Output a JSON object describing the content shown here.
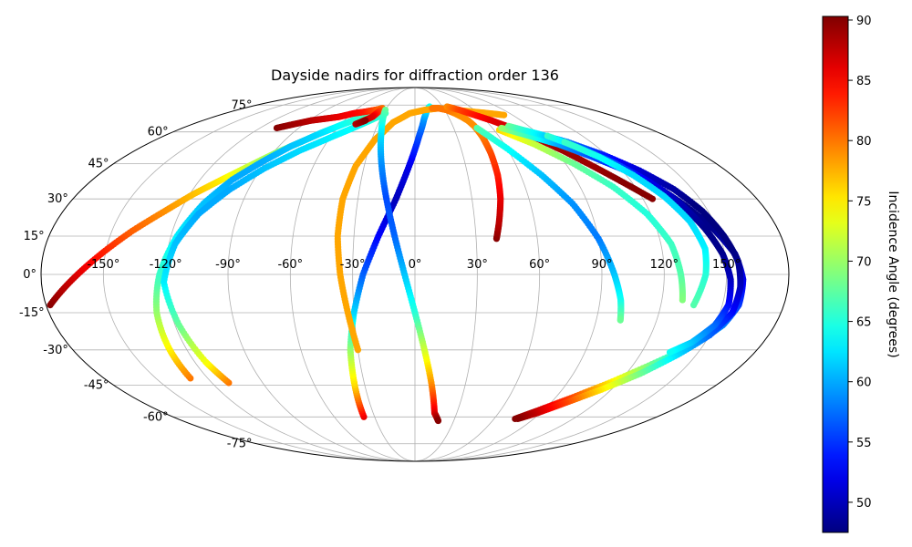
{
  "chart_data": {
    "type": "scatter",
    "projection": "mollweide",
    "title": "Dayside nadirs for diffraction order 136",
    "xlabel": "",
    "ylabel": "",
    "grid": true,
    "x_ticks": [
      "-150°",
      "-120°",
      "-90°",
      "-60°",
      "-30°",
      "0°",
      "30°",
      "60°",
      "90°",
      "120°",
      "150°"
    ],
    "x_tick_values": [
      -150,
      -120,
      -90,
      -60,
      -30,
      0,
      30,
      60,
      90,
      120,
      150
    ],
    "y_ticks": [
      "-75°",
      "-60°",
      "-45°",
      "-30°",
      "-15°",
      "0°",
      "15°",
      "30°",
      "45°",
      "60°",
      "75°"
    ],
    "y_tick_values": [
      -75,
      -60,
      -45,
      -30,
      -15,
      0,
      15,
      30,
      45,
      60,
      75
    ],
    "colorbar": {
      "label": "Incidence Angle (degrees)",
      "colormap": "jet",
      "range": [
        47.5,
        90.3
      ],
      "ticks": [
        50,
        55,
        60,
        65,
        70,
        75,
        80,
        85,
        90
      ],
      "tick_labels": [
        "50",
        "55",
        "60",
        "65",
        "70",
        "75",
        "80",
        "85",
        "90"
      ]
    },
    "series": [
      {
        "lon": [
          -178,
          -165,
          -152,
          -140,
          -128,
          -118,
          -108,
          -98,
          -88,
          -78,
          -68,
          -58,
          -48,
          -38
        ],
        "lat": [
          -12,
          -2,
          8,
          17,
          25,
          32,
          38,
          44,
          50,
          55,
          60,
          64,
          68,
          71
        ],
        "incidence": [
          90,
          87,
          84,
          81,
          79,
          77,
          75,
          72,
          70,
          68,
          66,
          64,
          67,
          70
        ]
      },
      {
        "lon": [
          -130,
          -129,
          -127,
          -123,
          -117,
          -110,
          -102,
          -92,
          -82,
          -70,
          -58,
          -46,
          -34
        ],
        "lat": [
          -42,
          -30,
          -15,
          0,
          15,
          28,
          38,
          46,
          53,
          59,
          64,
          68,
          72
        ],
        "incidence": [
          80,
          75,
          70,
          66,
          63,
          61,
          60,
          60,
          61,
          62,
          64,
          66,
          68
        ]
      },
      {
        "lon": [
          -110,
          -114,
          -118,
          -121,
          -117,
          -110,
          -100,
          -88,
          -74,
          -58,
          -43,
          -28
        ],
        "lat": [
          -44,
          -35,
          -20,
          -3,
          12,
          24,
          34,
          43,
          51,
          58,
          64,
          70
        ],
        "incidence": [
          80,
          74,
          68,
          63,
          61,
          60,
          60,
          61,
          62,
          63,
          64,
          66
        ]
      },
      {
        "lon": [
          -107,
          -98,
          -88,
          -78,
          -68,
          -58,
          -48,
          -40,
          -34,
          -38,
          -48,
          -42
        ],
        "lat": [
          62,
          64,
          66,
          67,
          68,
          70,
          71,
          72,
          73,
          68,
          64,
          66
        ],
        "incidence": [
          90,
          89,
          88,
          87,
          86,
          85,
          84,
          82,
          80,
          86,
          88,
          90
        ]
      },
      {
        "lon": [
          -38,
          -36,
          -34,
          -30,
          -25,
          -18,
          -10,
          -3,
          3,
          8,
          12,
          16
        ],
        "lat": [
          -60,
          -45,
          -30,
          -15,
          0,
          15,
          30,
          45,
          58,
          67,
          72,
          74
        ],
        "incidence": [
          86,
          76,
          70,
          62,
          57,
          53,
          50,
          52,
          56,
          59,
          62,
          64
        ]
      },
      {
        "lon": [
          -30,
          -33,
          -36,
          -38,
          -38,
          -35,
          -28,
          -18,
          -5,
          10,
          25,
          40,
          55,
          70,
          82
        ],
        "lat": [
          -30,
          -15,
          0,
          15,
          30,
          44,
          56,
          65,
          70,
          72,
          73,
          72,
          71,
          70,
          69
        ],
        "incidence": [
          78,
          78,
          78,
          78,
          78,
          78,
          78,
          78,
          78,
          78,
          78,
          78,
          78,
          78,
          78
        ]
      },
      {
        "lon": [
          -30,
          -25,
          -20,
          -15,
          -10,
          -5,
          0,
          5,
          10,
          14,
          18
        ],
        "lat": [
          72,
          60,
          45,
          30,
          15,
          0,
          -15,
          -30,
          -45,
          -58,
          -62
        ],
        "incidence": [
          68,
          63,
          59,
          56,
          57,
          61,
          65,
          72,
          79,
          86,
          90
        ]
      },
      {
        "lon": [
          40,
          42,
          45,
          47,
          48,
          48,
          47,
          45,
          42,
          38,
          32,
          25,
          18
        ],
        "lat": [
          14,
          20,
          30,
          40,
          50,
          58,
          63,
          66,
          68,
          70,
          72,
          73,
          73
        ],
        "incidence": [
          90,
          88,
          86,
          84,
          82,
          80,
          79,
          79,
          79,
          79,
          80,
          80,
          80
        ]
      },
      {
        "lon": [
          35,
          45,
          55,
          65,
          75,
          85,
          95,
          105,
          115,
          125
        ],
        "lat": [
          74,
          72,
          69,
          66,
          62,
          57,
          51,
          44,
          37,
          30
        ],
        "incidence": [
          79,
          82,
          84,
          86,
          87,
          88,
          89,
          89,
          90,
          90
        ]
      },
      {
        "lon": [
          48,
          60,
          72,
          82,
          90,
          96,
          100,
          102
        ],
        "lat": [
          62,
          52,
          40,
          28,
          14,
          0,
          -10,
          -18
        ],
        "incidence": [
          67,
          64,
          61,
          59,
          58,
          61,
          64,
          68
        ]
      },
      {
        "lon": [
          64,
          80,
          95,
          108,
          118,
          125,
          128,
          130
        ],
        "lat": [
          61,
          54,
          45,
          35,
          24,
          12,
          0,
          -10
        ],
        "incidence": [
          76,
          72,
          68,
          66,
          65,
          66,
          67,
          69
        ]
      },
      {
        "lon": [
          67,
          82,
          96,
          110,
          122,
          132,
          140,
          148,
          155,
          158,
          158,
          154,
          145,
          130,
          115,
          100,
          86,
          76
        ],
        "lat": [
          62,
          58,
          54,
          48,
          42,
          35,
          27,
          18,
          8,
          -2,
          -12,
          -20,
          -28,
          -36,
          -44,
          -51,
          -57,
          -61
        ],
        "incidence": [
          70,
          66,
          60,
          56,
          53,
          50,
          48,
          48,
          50,
          52,
          55,
          58,
          62,
          68,
          75,
          82,
          87,
          90
        ]
      },
      {
        "lon": [
          74,
          90,
          104,
          118,
          130,
          140,
          147,
          152,
          156,
          157,
          156,
          150,
          140,
          128,
          114,
          100,
          88,
          78
        ],
        "lat": [
          63,
          59,
          55,
          49,
          42,
          34,
          25,
          15,
          5,
          -5,
          -15,
          -24,
          -32,
          -40,
          -47,
          -53,
          -58,
          -61
        ],
        "incidence": [
          68,
          63,
          58,
          54,
          51,
          49,
          47,
          47,
          48,
          50,
          53,
          57,
          62,
          68,
          75,
          82,
          87,
          90
        ]
      },
      {
        "lon": [
          95,
          108,
          120,
          130,
          138,
          144,
          149,
          152,
          153,
          150,
          143,
          135
        ],
        "lat": [
          58,
          52,
          45,
          37,
          28,
          18,
          8,
          -2,
          -12,
          -20,
          -27,
          -31
        ],
        "incidence": [
          66,
          60,
          56,
          52,
          50,
          48,
          48,
          50,
          53,
          57,
          61,
          64
        ]
      },
      {
        "lon": [
          102,
          114,
          124,
          132,
          138,
          141,
          140,
          136
        ],
        "lat": [
          55,
          48,
          40,
          31,
          21,
          10,
          0,
          -12
        ],
        "incidence": [
          66,
          64,
          62,
          62,
          62,
          63,
          65,
          67
        ]
      }
    ]
  }
}
